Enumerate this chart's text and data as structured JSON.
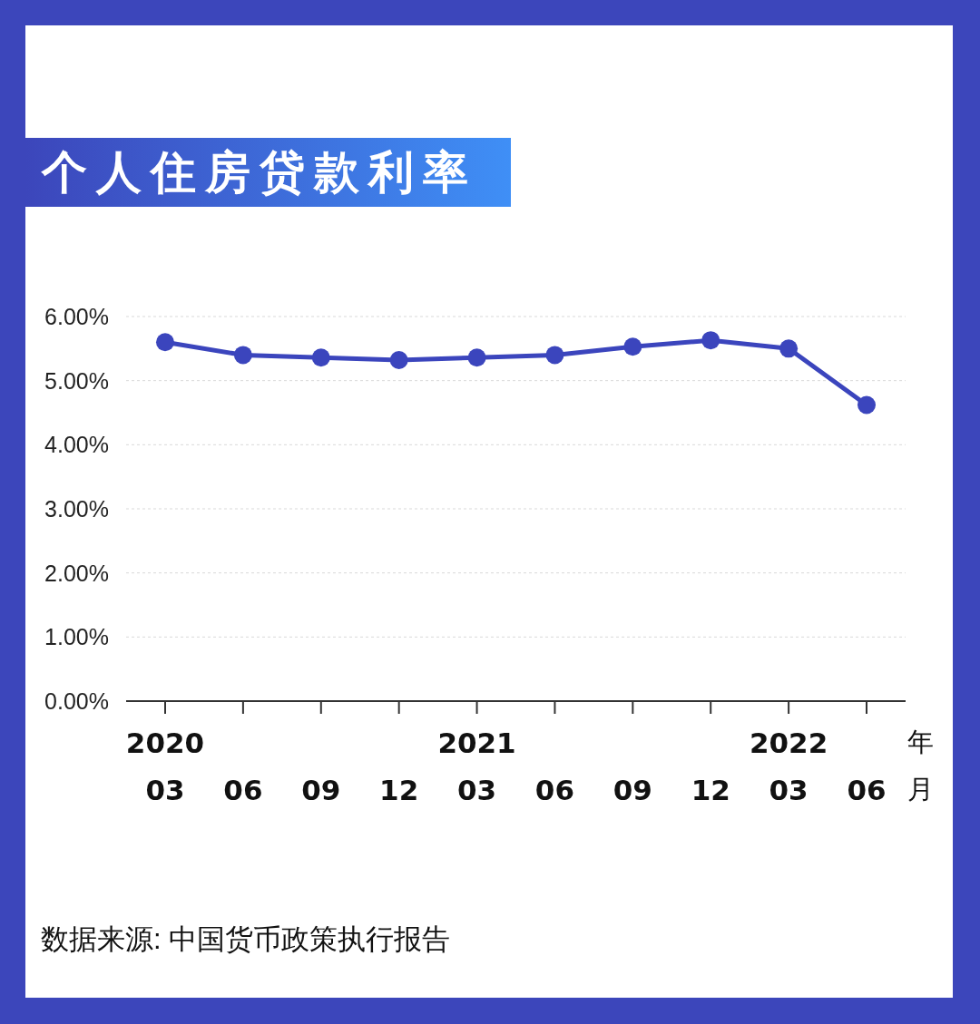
{
  "chart_data": {
    "type": "line",
    "title": "个人住房贷款利率",
    "xlabel": "年月",
    "categories": [
      "2020\n03",
      "06",
      "09",
      "12",
      "2021\n03",
      "06",
      "09",
      "12",
      "2022\n03",
      "06"
    ],
    "series": [
      {
        "color": "#3b45bd",
        "values": [
          5.6,
          5.4,
          5.36,
          5.32,
          5.36,
          5.4,
          5.53,
          5.63,
          5.5,
          4.62
        ]
      }
    ],
    "ylim": [
      0,
      6
    ],
    "yticks": [
      {
        "value": 0,
        "label": "0.00%"
      },
      {
        "value": 1,
        "label": "1.00%"
      },
      {
        "value": 2,
        "label": "2.00%"
      },
      {
        "value": 3,
        "label": "3.00%"
      },
      {
        "value": 4,
        "label": "4.00%"
      },
      {
        "value": 5,
        "label": "5.00%"
      },
      {
        "value": 6,
        "label": "6.00%"
      }
    ],
    "grid": "y",
    "marker": "circle",
    "line_style": "solid",
    "annotations": [
      "数据来源: 中国货币政策执行报告"
    ]
  }
}
